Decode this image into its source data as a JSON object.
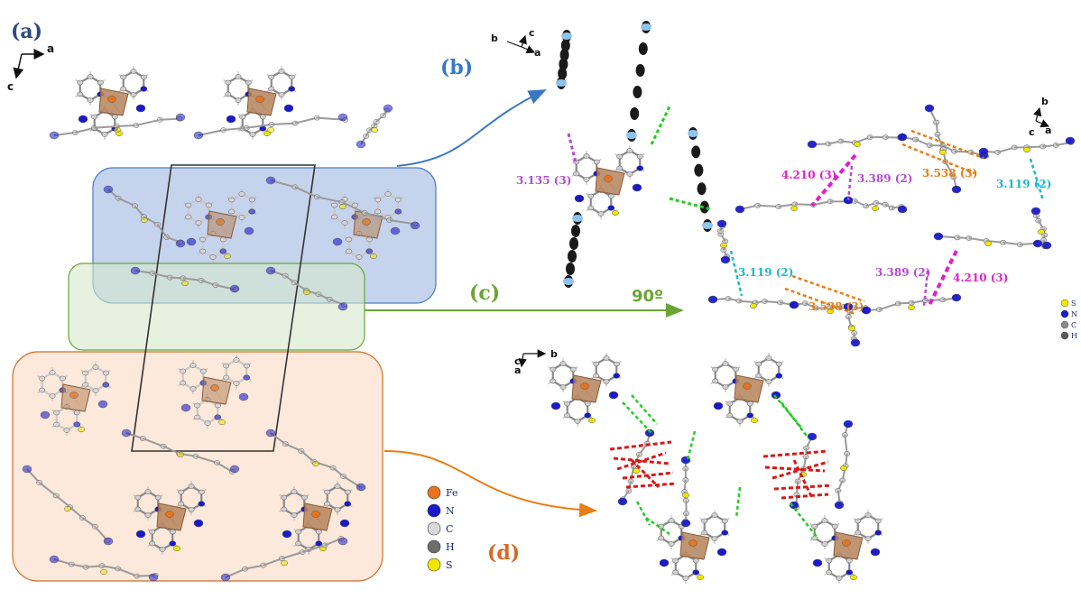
{
  "panels": {
    "a": "(a)",
    "b": "(b)",
    "c": "(c)",
    "d": "(d)"
  },
  "axes": {
    "a": {
      "x": "a",
      "y": "c"
    },
    "b": {
      "x": "a",
      "y": "c",
      "z": "b"
    },
    "c": {
      "x": "a",
      "y": "b",
      "z": "c"
    },
    "d": {
      "x": "b",
      "y": "a",
      "z": "c"
    }
  },
  "rotation_label": "90º",
  "distances": {
    "b_purple": "3.135 (3)",
    "c_orange_top": "3.538 (3)",
    "c_magenta_top": "4.210 (3)",
    "c_purple_top": "3.389 (2)",
    "c_cyan_top": "3.119 (2)",
    "c_cyan_bottom": "3.119 (2)",
    "c_purple_bottom": "3.389 (2)",
    "c_magenta_bottom": "4.210 (3)",
    "c_orange_bottom": "3.538 (3)"
  },
  "legend_main": [
    {
      "label": "Fe",
      "color": "#e8731c"
    },
    {
      "label": "N",
      "color": "#1a1acc"
    },
    {
      "label": "C",
      "color": "#d9d9d9"
    },
    {
      "label": "H",
      "color": "#6e6e6e"
    },
    {
      "label": "S",
      "color": "#f2e600"
    }
  ],
  "legend_small": [
    {
      "label": "S",
      "color": "#f2e600"
    },
    {
      "label": "N",
      "color": "#1a1acc"
    },
    {
      "label": "C",
      "color": "#8a8a8a"
    },
    {
      "label": "H",
      "color": "#5a5a5a"
    }
  ],
  "colors": {
    "panel_a": "#2c4a7c",
    "panel_b": "#3a78c0",
    "panel_c": "#6aa535",
    "panel_d": "#d46b25",
    "box_blue": "#b8c8e8",
    "box_green": "#d6e8cc",
    "box_orange": "#fbe1cf",
    "purple": "#b24ccf",
    "magenta": "#e020c8",
    "orange": "#e77d14",
    "cyan": "#18b8d0",
    "green": "#22cc22",
    "red": "#d41a1a"
  }
}
